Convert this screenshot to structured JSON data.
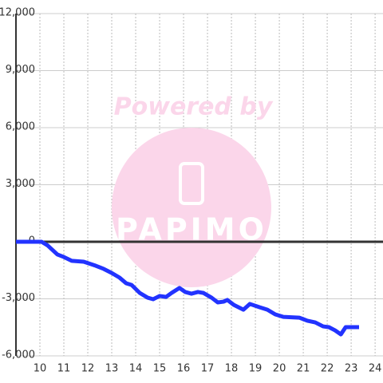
{
  "chart_data": {
    "type": "line",
    "watermark": {
      "text": "Powered by",
      "logo": "PAPIMO"
    },
    "x": [
      9.0,
      10.07,
      10.33,
      10.73,
      11.0,
      11.33,
      11.83,
      12.33,
      12.67,
      13.0,
      13.33,
      13.6,
      13.83,
      14.17,
      14.5,
      14.73,
      15.0,
      15.27,
      15.5,
      15.83,
      16.07,
      16.33,
      16.6,
      16.83,
      17.17,
      17.43,
      17.67,
      17.83,
      18.1,
      18.5,
      18.77,
      19.17,
      19.5,
      19.83,
      20.17,
      20.83,
      21.17,
      21.5,
      21.83,
      22.07,
      22.33,
      22.57,
      22.77,
      23.33
    ],
    "series": [
      {
        "color": "#2233ff",
        "values": [
          0,
          0,
          -200,
          -670,
          -800,
          -1000,
          -1050,
          -1260,
          -1430,
          -1640,
          -1890,
          -2180,
          -2270,
          -2690,
          -2940,
          -3020,
          -2850,
          -2900,
          -2690,
          -2430,
          -2640,
          -2730,
          -2640,
          -2690,
          -2940,
          -3190,
          -3150,
          -3060,
          -3320,
          -3570,
          -3270,
          -3440,
          -3570,
          -3820,
          -3950,
          -3990,
          -4150,
          -4240,
          -4450,
          -4490,
          -4660,
          -4870,
          -4490,
          -4490
        ]
      }
    ],
    "xlim": [
      9,
      24.33
    ],
    "xticks": [
      10,
      11,
      12,
      13,
      14,
      15,
      16,
      17,
      18,
      19,
      20,
      21,
      22,
      23,
      24
    ],
    "ylim": [
      -6000,
      12000
    ],
    "yticks": [
      {
        "value": -6000,
        "label": "-6,000"
      },
      {
        "value": -3000,
        "label": "-3,000"
      },
      0,
      {
        "value": 3000,
        "label": "3,000"
      },
      {
        "value": 6000,
        "label": "6,000"
      },
      {
        "value": 9000,
        "label": "9,000"
      },
      {
        "value": 12000,
        "label": "12,000"
      }
    ],
    "grid": true
  }
}
